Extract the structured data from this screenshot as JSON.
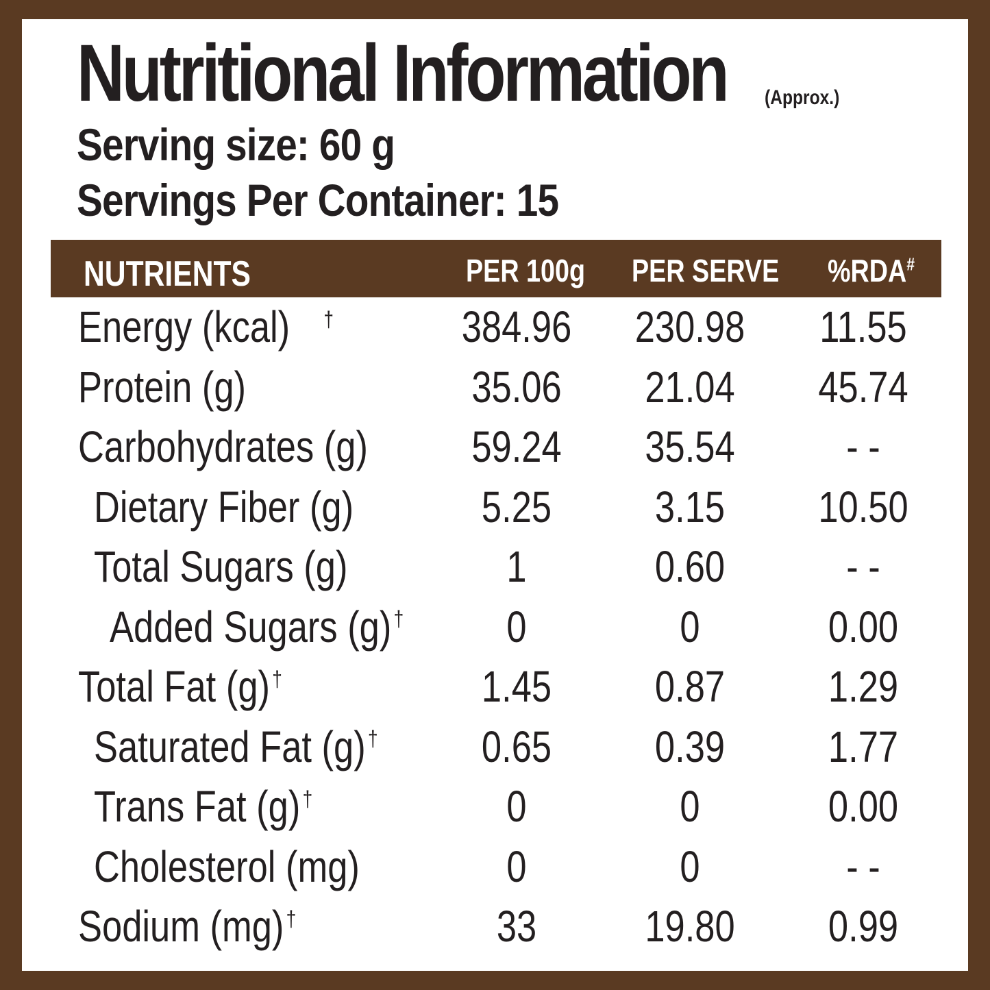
{
  "title": "Nutritional Information",
  "approx": "(Approx.)",
  "serving_size": "Serving size: 60 g",
  "servings_per_container": "Servings Per Container: 15",
  "colors": {
    "brown": "#5a3a22",
    "text": "#231f20",
    "panel": "#ffffff"
  },
  "table": {
    "headers": [
      "NUTRIENTS",
      "PER 100g",
      "PER SERVE",
      "%RDA"
    ],
    "rda_mark": "#",
    "dagger": "†",
    "rows": [
      {
        "name": "Energy (kcal)",
        "indent": 0,
        "dagger": "†",
        "per100": "384.96",
        "perserve": "230.98",
        "rda": "11.55"
      },
      {
        "name": "Protein (g)",
        "indent": 0,
        "dagger": "",
        "per100": "35.06",
        "perserve": "21.04",
        "rda": "45.74"
      },
      {
        "name": "Carbohydrates (g)",
        "indent": 0,
        "dagger": "",
        "per100": "59.24",
        "perserve": "35.54",
        "rda": "- -"
      },
      {
        "name": "Dietary Fiber (g)",
        "indent": 1,
        "dagger": "",
        "per100": "5.25",
        "perserve": "3.15",
        "rda": "10.50"
      },
      {
        "name": "Total Sugars  (g)",
        "indent": 1,
        "dagger": "",
        "per100": "1",
        "perserve": "0.60",
        "rda": "- -"
      },
      {
        "name": "Added Sugars  (g)",
        "indent": 2,
        "dagger": "†",
        "per100": "0",
        "perserve": "0",
        "rda": "0.00"
      },
      {
        "name": "Total Fat  (g)",
        "indent": 0,
        "dagger": "†",
        "per100": "1.45",
        "perserve": "0.87",
        "rda": "1.29"
      },
      {
        "name": "Saturated Fat  (g)",
        "indent": 1,
        "dagger": "†",
        "per100": "0.65",
        "perserve": "0.39",
        "rda": "1.77"
      },
      {
        "name": "Trans Fat  (g)",
        "indent": 1,
        "dagger": "†",
        "per100": "0",
        "perserve": "0",
        "rda": "0.00"
      },
      {
        "name": "Cholesterol  (mg)",
        "indent": 1,
        "dagger": "",
        "per100": "0",
        "perserve": "0",
        "rda": "- -"
      },
      {
        "name": "Sodium (mg)",
        "indent": 0,
        "dagger": "†",
        "per100": "33",
        "perserve": "19.80",
        "rda": "0.99"
      }
    ]
  }
}
